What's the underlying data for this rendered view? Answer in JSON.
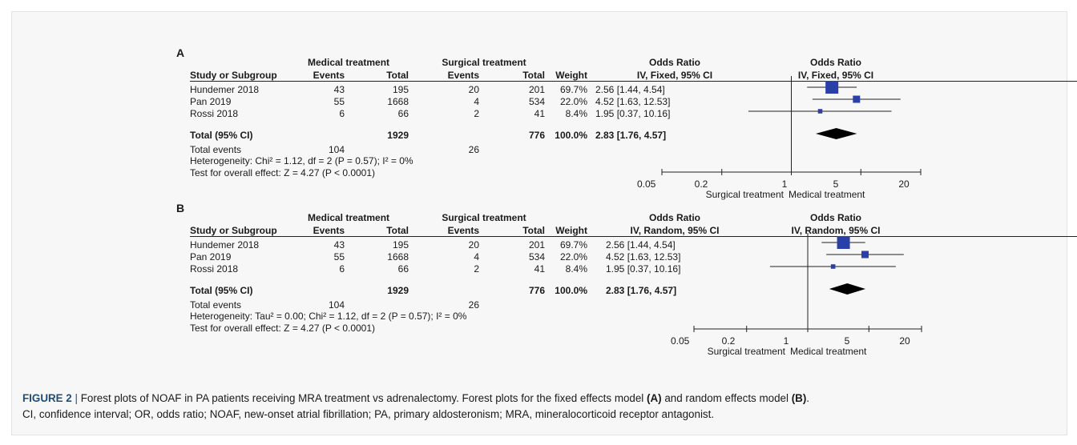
{
  "panels": [
    {
      "letter": "A",
      "group1": "Medical treatment",
      "group2": "Surgical treatment",
      "effect_title": "Odds Ratio",
      "effect_method": "IV, Fixed, 95% CI",
      "plot_title": "Odds Ratio",
      "plot_method": "IV, Fixed, 95% CI",
      "headers": {
        "study": "Study or Subgroup",
        "events1": "Events",
        "total1": "Total",
        "events2": "Events",
        "total2": "Total",
        "weight": "Weight"
      },
      "studies": [
        {
          "name": "Hundemer 2018",
          "events1": "43",
          "total1": "195",
          "events2": "20",
          "total2": "201",
          "weight": "69.7%",
          "ci": "2.56 [1.44, 4.54]"
        },
        {
          "name": "Pan 2019",
          "events1": "55",
          "total1": "1668",
          "events2": "4",
          "total2": "534",
          "weight": "22.0%",
          "ci": "4.52 [1.63, 12.53]"
        },
        {
          "name": "Rossi 2018",
          "events1": "6",
          "total1": "66",
          "events2": "2",
          "total2": "41",
          "weight": "8.4%",
          "ci": "1.95 [0.37, 10.16]"
        }
      ],
      "total": {
        "label": "Total (95% CI)",
        "total1": "1929",
        "total2": "776",
        "weight": "100.0%",
        "ci": "2.83 [1.76, 4.57]"
      },
      "events": {
        "label": "Total events",
        "events1": "104",
        "events2": "26"
      },
      "heterogeneity": "Heterogeneity: Chi² = 1.12, df = 2 (P = 0.57); I² = 0%",
      "overall": "Test for overall effect: Z = 4.27 (P < 0.0001)",
      "axis_ticks": [
        "0.05",
        "0.2",
        "1",
        "5",
        "20"
      ],
      "axis_left": "Surgical treatment",
      "axis_right": "Medical treatment"
    },
    {
      "letter": "B",
      "group1": "Medical treatment",
      "group2": "Surgical treatment",
      "effect_title": "Odds Ratio",
      "effect_method": "IV, Random, 95% CI",
      "plot_title": "Odds Ratio",
      "plot_method": "IV, Random, 95% CI",
      "headers": {
        "study": "Study or Subgroup",
        "events1": "Events",
        "total1": "Total",
        "events2": "Events",
        "total2": "Total",
        "weight": "Weight"
      },
      "studies": [
        {
          "name": "Hundemer 2018",
          "events1": "43",
          "total1": "195",
          "events2": "20",
          "total2": "201",
          "weight": "69.7%",
          "ci": "2.56 [1.44, 4.54]"
        },
        {
          "name": "Pan 2019",
          "events1": "55",
          "total1": "1668",
          "events2": "4",
          "total2": "534",
          "weight": "22.0%",
          "ci": "4.52 [1.63, 12.53]"
        },
        {
          "name": "Rossi 2018",
          "events1": "6",
          "total1": "66",
          "events2": "2",
          "total2": "41",
          "weight": "8.4%",
          "ci": "1.95 [0.37, 10.16]"
        }
      ],
      "total": {
        "label": "Total (95% CI)",
        "total1": "1929",
        "total2": "776",
        "weight": "100.0%",
        "ci": "2.83 [1.76, 4.57]"
      },
      "events": {
        "label": "Total events",
        "events1": "104",
        "events2": "26"
      },
      "heterogeneity": "Heterogeneity: Tau² = 0.00; Chi² = 1.12, df = 2 (P = 0.57); I² = 0%",
      "overall": "Test for overall effect: Z = 4.27 (P < 0.0001)",
      "axis_ticks": [
        "0.05",
        "0.2",
        "1",
        "5",
        "20"
      ],
      "axis_left": "Surgical treatment",
      "axis_right": "Medical treatment"
    }
  ],
  "chart_data": [
    {
      "type": "forest",
      "scale": "log",
      "xlim": [
        0.05,
        20
      ],
      "marker_color": "#2b3fa8",
      "studies": [
        {
          "name": "Hundemer 2018",
          "or": 2.56,
          "lower": 1.44,
          "upper": 4.54,
          "weight": 69.7
        },
        {
          "name": "Pan 2019",
          "or": 4.52,
          "lower": 1.63,
          "upper": 12.53,
          "weight": 22.0
        },
        {
          "name": "Rossi 2018",
          "or": 1.95,
          "lower": 0.37,
          "upper": 10.16,
          "weight": 8.4
        }
      ],
      "pooled": {
        "or": 2.83,
        "lower": 1.76,
        "upper": 4.57
      }
    },
    {
      "type": "forest",
      "scale": "log",
      "xlim": [
        0.05,
        20
      ],
      "marker_color": "#2b3fa8",
      "studies": [
        {
          "name": "Hundemer 2018",
          "or": 2.56,
          "lower": 1.44,
          "upper": 4.54,
          "weight": 69.7
        },
        {
          "name": "Pan 2019",
          "or": 4.52,
          "lower": 1.63,
          "upper": 12.53,
          "weight": 22.0
        },
        {
          "name": "Rossi 2018",
          "or": 1.95,
          "lower": 0.37,
          "upper": 10.16,
          "weight": 8.4
        }
      ],
      "pooled": {
        "or": 2.83,
        "lower": 1.76,
        "upper": 4.57
      }
    }
  ],
  "caption": {
    "label": "FIGURE 2",
    "separator": "|",
    "text_1": "Forest plots of NOAF in PA patients receiving MRA treatment vs adrenalectomy. Forest plots for the fixed effects model",
    "ref_a": "(A)",
    "text_2": "and random effects model",
    "ref_b": "(B)",
    "text_3": ".",
    "line_2": "CI, confidence interval; OR, odds ratio; NOAF, new-onset atrial fibrillation; PA, primary aldosteronism; MRA, mineralocorticoid receptor antagonist."
  }
}
